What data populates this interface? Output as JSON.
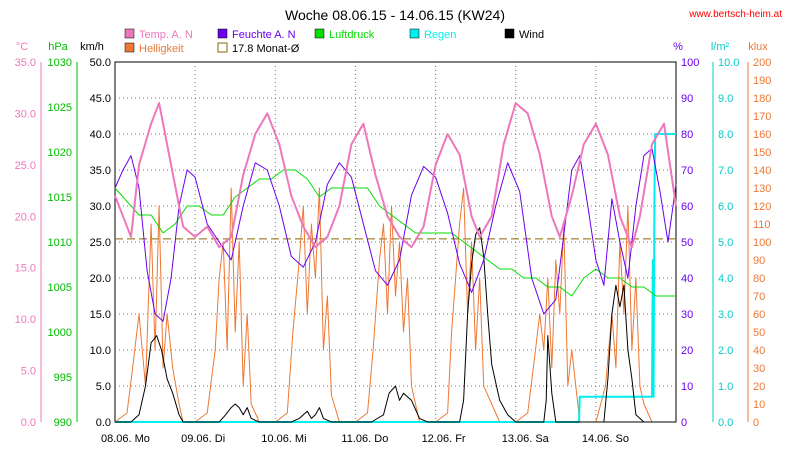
{
  "chart_data": {
    "type": "line",
    "title": "Woche 08.06.15 - 14.06.15 (KW24)",
    "source_credit": "www.bertsch-heim.at",
    "legend": [
      {
        "label": "Temp. A. N",
        "color": "#ee77bb",
        "swatch": "box"
      },
      {
        "label": "Feuchte A. N",
        "color": "#6a00ee",
        "swatch": "box"
      },
      {
        "label": "Luftdruck",
        "color": "#00dd00",
        "swatch": "box"
      },
      {
        "label": "Regen",
        "color": "#00eeee",
        "swatch": "box"
      },
      {
        "label": "Wind",
        "color": "#000000",
        "swatch": "box"
      },
      {
        "label": "Helligkeit",
        "color": "#ee7733",
        "swatch": "box"
      },
      {
        "label": "17.8 Monat-Ø",
        "color": "#886600",
        "swatch": "hollow"
      }
    ],
    "x_tick_labels": [
      "08.06. Mo",
      "09.06. Di",
      "10.06. Mi",
      "11.06. Do",
      "12.06. Fr",
      "13.06. Sa",
      "14.06. So"
    ],
    "axes": {
      "temp": {
        "unit": "°C",
        "color": "#ee77bb",
        "ticks": [
          "35.0",
          "30.0",
          "25.0",
          "20.0",
          "15.0",
          "10.0",
          "5.0",
          "0.0"
        ],
        "range": [
          0,
          35
        ]
      },
      "pressure": {
        "unit": "hPa",
        "color": "#00bb00",
        "ticks": [
          "1030",
          "1025",
          "1020",
          "1015",
          "1010",
          "1005",
          "1000",
          "995",
          "990"
        ],
        "range": [
          990,
          1030
        ]
      },
      "wind": {
        "unit": "km/h",
        "color": "#000000",
        "ticks": [
          "50.0",
          "45.0",
          "40.0",
          "35.0",
          "30.0",
          "25.0",
          "20.0",
          "15.0",
          "10.0",
          "5.0",
          "0.0"
        ],
        "range": [
          0,
          50
        ]
      },
      "humidity": {
        "unit": "%",
        "color": "#6a00ee",
        "ticks": [
          "100",
          "90",
          "80",
          "70",
          "60",
          "50",
          "40",
          "30",
          "20",
          "10",
          "0"
        ],
        "range": [
          0,
          100
        ]
      },
      "rain": {
        "unit": "l/m²",
        "color": "#00cccc",
        "ticks": [
          "10.0",
          "9.0",
          "8.0",
          "7.0",
          "6.0",
          "5.0",
          "4.0",
          "3.0",
          "2.0",
          "1.0",
          "0.0"
        ],
        "range": [
          0,
          10
        ]
      },
      "light": {
        "unit": "klux",
        "color": "#ee7733",
        "ticks": [
          "200",
          "190",
          "180",
          "170",
          "160",
          "150",
          "140",
          "130",
          "120",
          "110",
          "100",
          "90",
          "80",
          "70",
          "60",
          "50",
          "40",
          "30",
          "20",
          "10",
          "0"
        ],
        "range": [
          0,
          200
        ]
      }
    },
    "month_avg_temp": 17.8,
    "series": [
      {
        "name": "Temp. A. N",
        "axis": "temp",
        "color": "#ee77bb",
        "width": 2,
        "x": [
          0,
          0.1,
          0.2,
          0.3,
          0.45,
          0.55,
          0.7,
          0.85,
          1.0,
          1.15,
          1.3,
          1.45,
          1.6,
          1.75,
          1.9,
          2.05,
          2.2,
          2.35,
          2.5,
          2.65,
          2.8,
          2.95,
          3.1,
          3.25,
          3.4,
          3.55,
          3.7,
          3.85,
          4.0,
          4.15,
          4.3,
          4.45,
          4.55,
          4.7,
          4.85,
          5.0,
          5.15,
          5.3,
          5.45,
          5.55,
          5.7,
          5.85,
          6.0,
          6.15,
          6.3,
          6.45,
          6.55,
          6.7,
          6.85,
          7.0
        ],
        "y": [
          22,
          20,
          18,
          25,
          29,
          31,
          25,
          19,
          18,
          19,
          17,
          18,
          24,
          28,
          30,
          27,
          22,
          19,
          17,
          18,
          21,
          27,
          29,
          24,
          20,
          18,
          17,
          19,
          25,
          28,
          26,
          20,
          18,
          20,
          27,
          31,
          30,
          26,
          20,
          18,
          22,
          27,
          29,
          26,
          20,
          17,
          20,
          27,
          29,
          21
        ]
      },
      {
        "name": "Feuchte A. N",
        "axis": "humidity",
        "color": "#6a00ee",
        "width": 1,
        "x": [
          0,
          0.1,
          0.2,
          0.3,
          0.4,
          0.5,
          0.6,
          0.7,
          0.8,
          0.9,
          1.0,
          1.15,
          1.3,
          1.45,
          1.6,
          1.75,
          1.9,
          2.05,
          2.2,
          2.35,
          2.5,
          2.65,
          2.8,
          2.95,
          3.1,
          3.25,
          3.4,
          3.55,
          3.7,
          3.85,
          4.0,
          4.15,
          4.3,
          4.45,
          4.6,
          4.75,
          4.9,
          5.05,
          5.2,
          5.35,
          5.5,
          5.6,
          5.7,
          5.8,
          5.9,
          6.0,
          6.1,
          6.2,
          6.3,
          6.4,
          6.5,
          6.6,
          6.7,
          6.8,
          6.9,
          7.0
        ],
        "y": [
          65,
          70,
          74,
          65,
          42,
          30,
          28,
          40,
          60,
          70,
          68,
          55,
          50,
          45,
          60,
          72,
          70,
          60,
          46,
          43,
          50,
          66,
          72,
          68,
          55,
          42,
          38,
          45,
          63,
          71,
          68,
          58,
          44,
          36,
          45,
          60,
          72,
          64,
          40,
          30,
          34,
          52,
          70,
          74,
          60,
          45,
          38,
          62,
          50,
          40,
          60,
          74,
          76,
          64,
          50,
          66
        ]
      },
      {
        "name": "Luftdruck",
        "axis": "pressure",
        "color": "#00dd00",
        "width": 1,
        "x": [
          0,
          0.1,
          0.2,
          0.3,
          0.45,
          0.6,
          0.75,
          0.9,
          1.05,
          1.2,
          1.35,
          1.5,
          1.65,
          1.8,
          1.95,
          2.1,
          2.25,
          2.4,
          2.55,
          2.7,
          2.85,
          3.0,
          3.15,
          3.3,
          3.45,
          3.6,
          3.75,
          3.9,
          4.05,
          4.2,
          4.35,
          4.5,
          4.65,
          4.8,
          4.95,
          5.1,
          5.25,
          5.4,
          5.55,
          5.7,
          5.85,
          6.0,
          6.15,
          6.3,
          6.45,
          6.6,
          6.75,
          6.9,
          7.0
        ],
        "y": [
          1016,
          1015,
          1014,
          1013,
          1013,
          1011,
          1012,
          1014,
          1014,
          1013,
          1013,
          1015,
          1016,
          1017,
          1017,
          1018,
          1018,
          1017,
          1015,
          1016,
          1016,
          1016,
          1016,
          1014,
          1013,
          1012,
          1011,
          1011,
          1011,
          1011,
          1010,
          1009,
          1008,
          1007,
          1007,
          1006,
          1006,
          1005,
          1005,
          1004,
          1006,
          1007,
          1006,
          1006,
          1005,
          1005,
          1004,
          1004,
          1004
        ]
      },
      {
        "name": "Wind",
        "axis": "wind",
        "color": "#000000",
        "width": 1,
        "x": [
          0,
          0.2,
          0.3,
          0.38,
          0.45,
          0.52,
          0.58,
          0.65,
          0.72,
          0.8,
          0.85,
          1.0,
          1.2,
          1.3,
          1.38,
          1.45,
          1.5,
          1.55,
          1.6,
          1.65,
          1.7,
          1.8,
          2.0,
          2.2,
          2.3,
          2.4,
          2.45,
          2.5,
          2.55,
          2.6,
          2.7,
          2.8,
          3.0,
          3.2,
          3.35,
          3.42,
          3.5,
          3.55,
          3.6,
          3.7,
          3.8,
          3.9,
          4.0,
          4.1,
          4.2,
          4.3,
          4.35,
          4.4,
          4.45,
          4.5,
          4.55,
          4.6,
          4.65,
          4.7,
          4.8,
          4.9,
          5.0,
          5.1,
          5.2,
          5.35,
          5.38,
          5.4,
          5.45,
          5.5,
          5.6,
          5.7,
          5.8,
          6.0,
          6.1,
          6.15,
          6.2,
          6.25,
          6.3,
          6.35,
          6.4,
          6.45,
          6.5,
          6.6,
          6.7,
          7.0
        ],
        "y": [
          0,
          0,
          1,
          5,
          11,
          12,
          10,
          6,
          4,
          1,
          0,
          0,
          0,
          0,
          1,
          2,
          2.5,
          2,
          1,
          2,
          0.5,
          0,
          0,
          0,
          0.5,
          1.5,
          0.5,
          1,
          2,
          0.5,
          0,
          0,
          0,
          0,
          1,
          4,
          5,
          3,
          4,
          3,
          0.5,
          0,
          0,
          0,
          0,
          0,
          3,
          15,
          22,
          26,
          27,
          23,
          15,
          8,
          3,
          1,
          0,
          0,
          0,
          0,
          3,
          12,
          4,
          0,
          0,
          0,
          0,
          0,
          0,
          6,
          15,
          19,
          16,
          19,
          10,
          6,
          1,
          0,
          0,
          0
        ]
      },
      {
        "name": "Helligkeit",
        "axis": "light",
        "color": "#ee7733",
        "width": 1,
        "x": [
          0,
          0.15,
          0.22,
          0.3,
          0.38,
          0.45,
          0.5,
          0.55,
          0.6,
          0.65,
          0.72,
          0.8,
          0.85,
          1.0,
          1.15,
          1.25,
          1.3,
          1.35,
          1.4,
          1.45,
          1.5,
          1.55,
          1.6,
          1.65,
          1.7,
          1.8,
          2.0,
          2.15,
          2.22,
          2.3,
          2.35,
          2.4,
          2.45,
          2.5,
          2.55,
          2.6,
          2.65,
          2.7,
          2.8,
          3.0,
          3.15,
          3.22,
          3.3,
          3.35,
          3.4,
          3.45,
          3.5,
          3.55,
          3.6,
          3.65,
          3.7,
          3.8,
          4.0,
          4.15,
          4.2,
          4.3,
          4.35,
          4.4,
          4.45,
          4.5,
          4.55,
          4.6,
          4.7,
          4.8,
          5.0,
          5.15,
          5.22,
          5.3,
          5.35,
          5.4,
          5.45,
          5.5,
          5.55,
          5.6,
          5.65,
          5.7,
          5.8,
          6.0,
          6.12,
          6.2,
          6.25,
          6.3,
          6.35,
          6.4,
          6.45,
          6.5,
          6.55,
          6.6,
          6.7,
          7.0
        ],
        "y": [
          0,
          5,
          30,
          60,
          20,
          110,
          40,
          120,
          30,
          60,
          30,
          10,
          0,
          0,
          5,
          40,
          80,
          100,
          40,
          130,
          50,
          100,
          20,
          60,
          10,
          0,
          0,
          5,
          50,
          90,
          120,
          60,
          110,
          80,
          130,
          40,
          70,
          15,
          0,
          0,
          5,
          40,
          90,
          110,
          60,
          120,
          70,
          100,
          50,
          80,
          20,
          0,
          0,
          5,
          50,
          110,
          130,
          60,
          100,
          40,
          80,
          20,
          10,
          0,
          0,
          5,
          30,
          60,
          40,
          80,
          30,
          90,
          60,
          110,
          20,
          40,
          0,
          0,
          20,
          60,
          30,
          100,
          60,
          120,
          40,
          80,
          20,
          10,
          0,
          0
        ]
      },
      {
        "name": "Regen",
        "axis": "rain",
        "color": "#00eeee",
        "width": 2,
        "x": [
          0,
          5.79,
          5.8,
          5.81,
          6.7,
          6.71,
          6.72,
          6.73,
          6.74,
          6.75,
          6.76,
          6.77,
          6.8,
          7.0
        ],
        "y": [
          0,
          0,
          0.7,
          0.7,
          0.7,
          4.5,
          0.7,
          6.2,
          8.0,
          8.0,
          8.0,
          8.0,
          8.0,
          8.0
        ]
      }
    ]
  }
}
